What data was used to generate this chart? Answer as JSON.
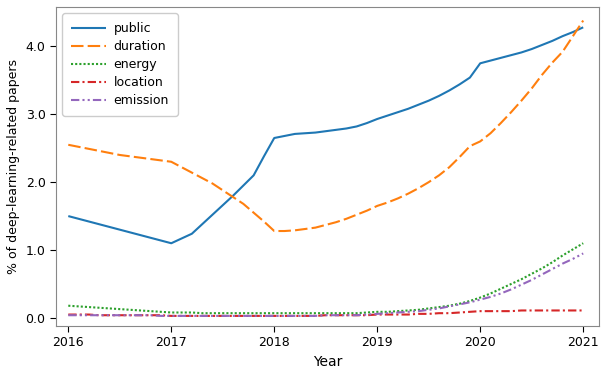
{
  "public": {
    "x": [
      2016,
      2016.1,
      2016.2,
      2016.3,
      2016.4,
      2016.5,
      2016.6,
      2016.7,
      2016.8,
      2016.9,
      2017,
      2017.1,
      2017.2,
      2017.3,
      2017.4,
      2017.5,
      2017.6,
      2017.7,
      2017.8,
      2017.9,
      2018,
      2018.1,
      2018.2,
      2018.3,
      2018.4,
      2018.5,
      2018.6,
      2018.7,
      2018.8,
      2018.9,
      2019,
      2019.1,
      2019.2,
      2019.3,
      2019.4,
      2019.5,
      2019.6,
      2019.7,
      2019.8,
      2019.9,
      2020,
      2020.1,
      2020.2,
      2020.3,
      2020.4,
      2020.5,
      2020.6,
      2020.7,
      2020.8,
      2020.9,
      2021
    ],
    "y": [
      1.5,
      1.46,
      1.42,
      1.38,
      1.34,
      1.3,
      1.26,
      1.22,
      1.18,
      1.14,
      1.1,
      1.17,
      1.24,
      1.38,
      1.52,
      1.66,
      1.8,
      1.95,
      2.1,
      2.38,
      2.65,
      2.68,
      2.71,
      2.72,
      2.73,
      2.75,
      2.77,
      2.79,
      2.82,
      2.87,
      2.93,
      2.98,
      3.03,
      3.08,
      3.14,
      3.2,
      3.27,
      3.35,
      3.44,
      3.54,
      3.75,
      3.79,
      3.83,
      3.87,
      3.91,
      3.96,
      4.02,
      4.08,
      4.15,
      4.21,
      4.28
    ],
    "color": "#1f77b4",
    "linestyle": "solid",
    "linewidth": 1.5,
    "label": "public"
  },
  "duration": {
    "x": [
      2016,
      2016.1,
      2016.2,
      2016.3,
      2016.4,
      2016.5,
      2016.6,
      2016.7,
      2016.8,
      2016.9,
      2017,
      2017.1,
      2017.2,
      2017.3,
      2017.4,
      2017.5,
      2017.6,
      2017.7,
      2017.8,
      2017.9,
      2018,
      2018.1,
      2018.2,
      2018.3,
      2018.4,
      2018.5,
      2018.6,
      2018.7,
      2018.8,
      2018.9,
      2019,
      2019.1,
      2019.2,
      2019.3,
      2019.4,
      2019.5,
      2019.6,
      2019.7,
      2019.8,
      2019.9,
      2020,
      2020.1,
      2020.2,
      2020.3,
      2020.4,
      2020.5,
      2020.6,
      2020.7,
      2020.8,
      2020.9,
      2021
    ],
    "y": [
      2.55,
      2.52,
      2.49,
      2.46,
      2.43,
      2.4,
      2.38,
      2.36,
      2.34,
      2.32,
      2.3,
      2.22,
      2.14,
      2.06,
      1.98,
      1.88,
      1.78,
      1.68,
      1.55,
      1.42,
      1.28,
      1.28,
      1.29,
      1.31,
      1.33,
      1.37,
      1.41,
      1.46,
      1.52,
      1.58,
      1.65,
      1.7,
      1.76,
      1.83,
      1.91,
      2.0,
      2.1,
      2.22,
      2.37,
      2.53,
      2.6,
      2.72,
      2.87,
      3.03,
      3.2,
      3.38,
      3.58,
      3.76,
      3.92,
      4.15,
      4.38
    ],
    "color": "#ff7f0e",
    "linestyle": "dashed",
    "linewidth": 1.5,
    "label": "duration"
  },
  "energy": {
    "x": [
      2016,
      2016.1,
      2016.2,
      2016.3,
      2016.4,
      2016.5,
      2016.6,
      2016.7,
      2016.8,
      2016.9,
      2017,
      2017.1,
      2017.2,
      2017.3,
      2017.4,
      2017.5,
      2017.6,
      2017.7,
      2017.8,
      2017.9,
      2018,
      2018.1,
      2018.2,
      2018.3,
      2018.4,
      2018.5,
      2018.6,
      2018.7,
      2018.8,
      2018.9,
      2019,
      2019.1,
      2019.2,
      2019.3,
      2019.4,
      2019.5,
      2019.6,
      2019.7,
      2019.8,
      2019.9,
      2020,
      2020.1,
      2020.2,
      2020.3,
      2020.4,
      2020.5,
      2020.6,
      2020.7,
      2020.8,
      2020.9,
      2021
    ],
    "y": [
      0.18,
      0.17,
      0.16,
      0.15,
      0.14,
      0.13,
      0.12,
      0.11,
      0.1,
      0.09,
      0.08,
      0.08,
      0.08,
      0.07,
      0.07,
      0.07,
      0.07,
      0.07,
      0.07,
      0.07,
      0.07,
      0.07,
      0.07,
      0.07,
      0.07,
      0.07,
      0.07,
      0.07,
      0.07,
      0.08,
      0.09,
      0.09,
      0.1,
      0.11,
      0.12,
      0.14,
      0.16,
      0.18,
      0.21,
      0.25,
      0.3,
      0.36,
      0.43,
      0.5,
      0.57,
      0.65,
      0.73,
      0.82,
      0.92,
      1.01,
      1.1
    ],
    "color": "#2ca02c",
    "linewidth": 1.5,
    "label": "energy"
  },
  "location": {
    "x": [
      2016,
      2016.1,
      2016.2,
      2016.3,
      2016.4,
      2016.5,
      2016.6,
      2016.7,
      2016.8,
      2016.9,
      2017,
      2017.1,
      2017.2,
      2017.3,
      2017.4,
      2017.5,
      2017.6,
      2017.7,
      2017.8,
      2017.9,
      2018,
      2018.1,
      2018.2,
      2018.3,
      2018.4,
      2018.5,
      2018.6,
      2018.7,
      2018.8,
      2018.9,
      2019,
      2019.1,
      2019.2,
      2019.3,
      2019.4,
      2019.5,
      2019.6,
      2019.7,
      2019.8,
      2019.9,
      2020,
      2020.1,
      2020.2,
      2020.3,
      2020.4,
      2020.5,
      2020.6,
      2020.7,
      2020.8,
      2020.9,
      2021
    ],
    "y": [
      0.05,
      0.05,
      0.05,
      0.04,
      0.04,
      0.04,
      0.04,
      0.04,
      0.04,
      0.04,
      0.03,
      0.03,
      0.03,
      0.03,
      0.03,
      0.03,
      0.03,
      0.03,
      0.03,
      0.03,
      0.03,
      0.03,
      0.03,
      0.03,
      0.03,
      0.04,
      0.04,
      0.04,
      0.04,
      0.04,
      0.05,
      0.05,
      0.05,
      0.05,
      0.06,
      0.06,
      0.07,
      0.07,
      0.08,
      0.09,
      0.1,
      0.1,
      0.1,
      0.1,
      0.11,
      0.11,
      0.11,
      0.11,
      0.11,
      0.11,
      0.11
    ],
    "color": "#d62728",
    "linewidth": 1.5,
    "label": "location"
  },
  "emission": {
    "x": [
      2016,
      2016.1,
      2016.2,
      2016.3,
      2016.4,
      2016.5,
      2016.6,
      2016.7,
      2016.8,
      2016.9,
      2017,
      2017.1,
      2017.2,
      2017.3,
      2017.4,
      2017.5,
      2017.6,
      2017.7,
      2017.8,
      2017.9,
      2018,
      2018.1,
      2018.2,
      2018.3,
      2018.4,
      2018.5,
      2018.6,
      2018.7,
      2018.8,
      2018.9,
      2019,
      2019.1,
      2019.2,
      2019.3,
      2019.4,
      2019.5,
      2019.6,
      2019.7,
      2019.8,
      2019.9,
      2020,
      2020.1,
      2020.2,
      2020.3,
      2020.4,
      2020.5,
      2020.6,
      2020.7,
      2020.8,
      2020.9,
      2021
    ],
    "y": [
      0.04,
      0.04,
      0.04,
      0.04,
      0.04,
      0.04,
      0.04,
      0.04,
      0.04,
      0.03,
      0.03,
      0.03,
      0.03,
      0.03,
      0.03,
      0.03,
      0.03,
      0.03,
      0.03,
      0.03,
      0.03,
      0.03,
      0.03,
      0.03,
      0.03,
      0.04,
      0.04,
      0.04,
      0.04,
      0.05,
      0.06,
      0.07,
      0.08,
      0.09,
      0.1,
      0.12,
      0.14,
      0.17,
      0.2,
      0.23,
      0.27,
      0.31,
      0.36,
      0.42,
      0.49,
      0.56,
      0.64,
      0.72,
      0.8,
      0.87,
      0.95
    ],
    "color": "#9467bd",
    "linewidth": 1.5,
    "label": "emission"
  },
  "xlabel": "Year",
  "ylabel": "% of deep-learning-related papers",
  "xlim": [
    2015.88,
    2021.15
  ],
  "ylim": [
    -0.12,
    4.58
  ],
  "xticks": [
    2016,
    2017,
    2018,
    2019,
    2020,
    2021
  ],
  "yticks": [
    0.0,
    1.0,
    2.0,
    3.0,
    4.0
  ],
  "legend_loc": "upper left",
  "figsize": [
    6.08,
    3.76
  ],
  "dpi": 100
}
